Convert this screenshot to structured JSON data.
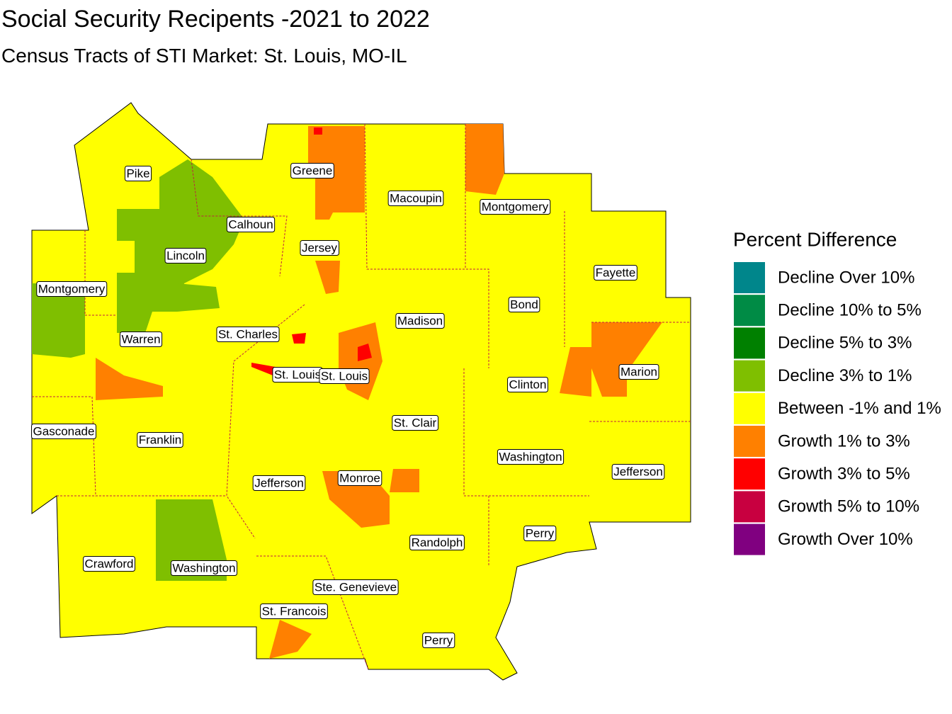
{
  "title": "Social Security Recipents -2021 to 2022",
  "subtitle": "Census Tracts of STI Market: St. Louis, MO-IL",
  "legend": {
    "title": "Percent Difference",
    "items": [
      {
        "label": "Decline Over 10%",
        "color": "#00868b"
      },
      {
        "label": "Decline 10% to 5%",
        "color": "#008b45"
      },
      {
        "label": "Decline 5% to 3%",
        "color": "#008000"
      },
      {
        "label": "Decline 3% to 1%",
        "color": "#7fbf00"
      },
      {
        "label": "Between -1% and 1%",
        "color": "#ffff00"
      },
      {
        "label": "Growth 1% to 3%",
        "color": "#ff8000"
      },
      {
        "label": "Growth 3% to 5%",
        "color": "#ff0000"
      },
      {
        "label": "Growth 5% to 10%",
        "color": "#c80040"
      },
      {
        "label": "Growth Over 10%",
        "color": "#800080"
      }
    ]
  },
  "counties": [
    "Pike",
    "Greene",
    "Macoupin",
    "Montgomery",
    "Calhoun",
    "Lincoln",
    "Jersey",
    "Fayette",
    "Montgomery",
    "Bond",
    "Madison",
    "St. Charles",
    "Warren",
    "Marion",
    "St. Louis",
    "St. Louis",
    "Clinton",
    "St. Clair",
    "Gasconade",
    "Franklin",
    "Washington",
    "Jefferson",
    "Monroe",
    "Jefferson",
    "Perry",
    "Randolph",
    "Crawford",
    "Washington",
    "Ste. Genevieve",
    "St. Francois",
    "Perry"
  ]
}
